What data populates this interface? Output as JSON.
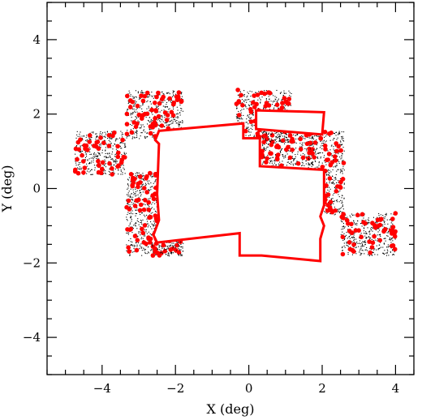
{
  "chart_data": {
    "type": "scatter",
    "xlabel": "X (deg)",
    "ylabel": "Y (deg)",
    "xlim": [
      -5.5,
      4.5
    ],
    "ylim": [
      -5,
      5
    ],
    "xticks_major": [
      -4,
      -2,
      0,
      2,
      4
    ],
    "yticks_major": [
      -4,
      -2,
      0,
      2,
      4
    ],
    "tick_labels_x": [
      "−4",
      "−2",
      "0",
      "2",
      "4"
    ],
    "tick_labels_y": [
      "−4",
      "−2",
      "0",
      "2",
      "4"
    ],
    "grid": false,
    "legend": "none",
    "colors": {
      "dense_points": "#000000",
      "highlight_points": "#ff0000",
      "footprint": "#ff0000",
      "frame": "#000000"
    },
    "point_fields": [
      {
        "xmin": -4.75,
        "xmax": -3.35,
        "ymin": 0.38,
        "ymax": 1.55
      },
      {
        "xmin": -3.35,
        "xmax": -1.8,
        "ymin": 1.35,
        "ymax": 2.65
      },
      {
        "xmin": -3.35,
        "xmax": -1.8,
        "ymin": -1.8,
        "ymax": 0.45
      },
      {
        "xmin": -2.7,
        "xmax": -1.85,
        "ymin": -1.8,
        "ymax": -1.4
      },
      {
        "xmin": -0.35,
        "xmax": 1.15,
        "ymin": 1.25,
        "ymax": 2.65
      },
      {
        "xmin": 0.35,
        "xmax": 1.75,
        "ymin": 0.6,
        "ymax": 1.55
      },
      {
        "xmin": 1.6,
        "xmax": 2.6,
        "ymin": 0.45,
        "ymax": 1.55
      },
      {
        "xmin": 1.95,
        "xmax": 2.6,
        "ymin": -0.7,
        "ymax": 0.45
      },
      {
        "xmin": 2.5,
        "xmax": 4.0,
        "ymin": -1.8,
        "ymax": -0.65
      }
    ],
    "footprints": [
      [
        [
          -2.45,
          1.55
        ],
        [
          -0.15,
          1.75
        ],
        [
          -0.15,
          1.35
        ],
        [
          0.3,
          1.35
        ],
        [
          0.3,
          0.6
        ],
        [
          2.05,
          0.5
        ],
        [
          2.05,
          -0.45
        ],
        [
          1.95,
          -0.75
        ],
        [
          2.05,
          -1.0
        ],
        [
          1.95,
          -1.35
        ],
        [
          1.95,
          -1.95
        ],
        [
          0.35,
          -1.8
        ],
        [
          -0.25,
          -1.8
        ],
        [
          -0.25,
          -1.2
        ],
        [
          -2.5,
          -1.45
        ],
        [
          -2.6,
          -1.25
        ],
        [
          -2.45,
          -0.85
        ],
        [
          -2.5,
          -0.15
        ],
        [
          -2.45,
          1.2
        ],
        [
          -2.55,
          1.3
        ],
        [
          -2.45,
          1.55
        ]
      ],
      [
        [
          0.2,
          2.1
        ],
        [
          2.05,
          2.05
        ],
        [
          2.0,
          1.45
        ],
        [
          0.2,
          1.6
        ],
        [
          0.2,
          2.1
        ]
      ]
    ]
  }
}
